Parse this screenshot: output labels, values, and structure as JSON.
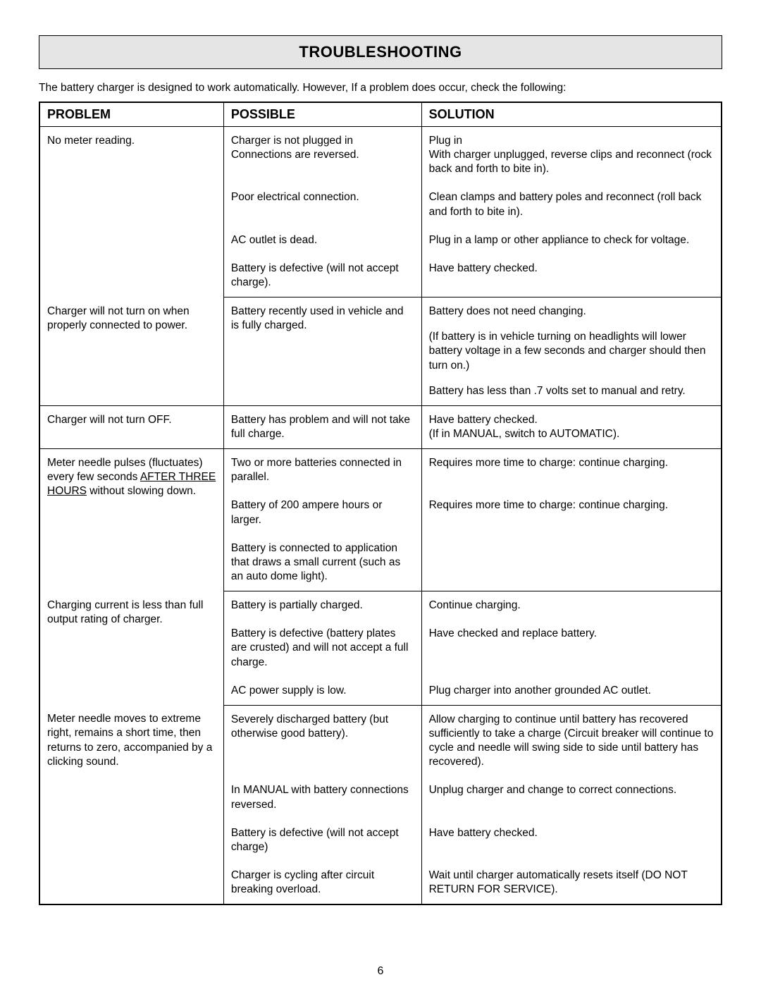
{
  "title": "TROUBLESHOOTING",
  "intro": "The battery charger is designed to work automatically. However, If a problem does occur, check the following:",
  "headers": {
    "problem": "PROBLEM",
    "possible": "POSSIBLE",
    "solution": "SOLUTION"
  },
  "rows": {
    "r1": {
      "problem": "No meter reading.",
      "possible": "Charger is not plugged in\nConnections are reversed.",
      "solution": "Plug in\nWith charger unplugged, reverse clips and reconnect (rock back and forth to bite in)."
    },
    "r2": {
      "possible": "Poor electrical connection.",
      "solution": "Clean clamps and battery poles and reconnect (roll back and forth to bite in)."
    },
    "r3": {
      "possible": "AC outlet is dead.",
      "solution": "Plug in a lamp or other appliance to check for voltage."
    },
    "r4": {
      "possible": "Battery is defective (will not accept charge).",
      "solution": "Have battery checked."
    },
    "r5": {
      "problem": "Charger will not turn on when properly connected to power.",
      "possible": "Battery recently used in vehicle and is fully charged.",
      "solution1": "Battery does not need changing.",
      "solution2": "(If battery is in vehicle turning on headlights will lower battery voltage in a few seconds and charger should then turn on.)",
      "solution3": "Battery has less than .7 volts set to manual and retry."
    },
    "r6": {
      "problem": "Charger will not turn OFF.",
      "possible": "Battery has problem and will not take full charge.",
      "solution": "Have battery checked.\n(If in MANUAL, switch to AUTOMATIC)."
    },
    "r7": {
      "problem_pre": "Meter needle pulses (fluctuates) every few seconds ",
      "problem_underline": "AFTER THREE HOURS",
      "problem_post": " without slowing down.",
      "possible": "Two or more batteries connected in parallel.",
      "solution": "Requires more time to charge: continue charging."
    },
    "r8": {
      "possible": "Battery of 200 ampere hours or larger.",
      "solution": "Requires more time to charge: continue charging."
    },
    "r9": {
      "possible": "Battery is connected to application that draws a small current (such as an auto dome light)."
    },
    "r10": {
      "problem": "Charging current is less than full output rating of charger.",
      "possible": "Battery is partially charged.",
      "solution": "Continue charging."
    },
    "r11": {
      "possible": "Battery is defective (battery plates are crusted) and will not accept a full charge.",
      "solution": "Have checked and replace battery."
    },
    "r12": {
      "possible": "AC power supply is low.",
      "solution": "Plug charger into another grounded AC outlet."
    },
    "r13": {
      "problem": "Meter needle moves to extreme right, remains a short time, then returns to zero, accompanied by a clicking sound.",
      "possible": "Severely discharged battery (but otherwise good battery).",
      "solution": "Allow charging to continue until battery has recovered sufficiently to take a charge (Circuit breaker will continue to cycle and needle will swing side to side until battery has recovered)."
    },
    "r14": {
      "possible": "In MANUAL with battery connections reversed.",
      "solution": "Unplug charger and change to correct connections."
    },
    "r15": {
      "possible": "Battery is defective (will not accept charge)",
      "solution": "Have battery checked."
    },
    "r16": {
      "possible": "Charger is cycling after circuit breaking overload.",
      "solution_pre": "Wait until charger automatically resets itself ",
      "solution_bold": "(DO NOT RETURN FOR SERVICE)."
    }
  },
  "page_number": "6",
  "colors": {
    "title_bg": "#e5e5e5",
    "border": "#000000",
    "text": "#000000",
    "background": "#ffffff"
  },
  "fonts": {
    "title_size": 22,
    "header_size": 18,
    "body_size": 15.5
  }
}
